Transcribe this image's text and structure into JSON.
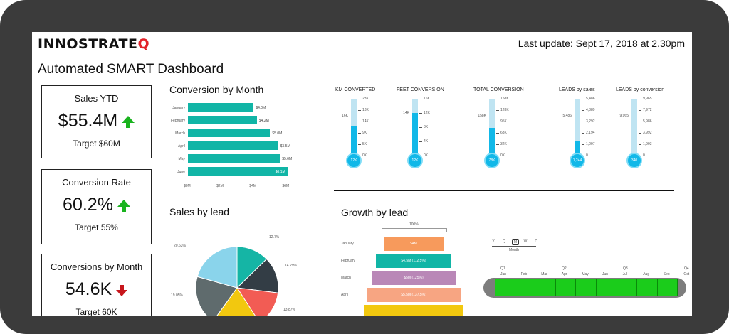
{
  "header": {
    "logo_text": "INNOSTRATE",
    "logo_accent": "Q",
    "last_update": "Last update: Sept 17, 2018 at 2.30pm",
    "title": "Automated SMART Dashboard"
  },
  "kpis": [
    {
      "label": "Sales YTD",
      "value": "$55.4M",
      "trend": "up",
      "target": "Target $60M"
    },
    {
      "label": "Conversion Rate",
      "value": "60.2%",
      "trend": "up",
      "target": "Target 55%"
    },
    {
      "label": "Conversions by Month",
      "value": "54.6K",
      "trend": "down",
      "target": "Target 60K"
    }
  ],
  "conversion_by_month": {
    "title": "Conversion by Month",
    "categories": [
      "January",
      "February",
      "March",
      "April",
      "May",
      "June"
    ],
    "value_labels": [
      "$4.0M",
      "$4.2M",
      "$5.0M",
      "$5.5M",
      "$5.6M",
      "$6.1M"
    ],
    "values": [
      4.0,
      4.2,
      5.0,
      5.5,
      5.6,
      6.1
    ],
    "xticks": [
      "$0M",
      "$2M",
      "$4M",
      "$6M"
    ],
    "xmax": 6.5
  },
  "thermometers": [
    {
      "title": "KM CONVERTED",
      "target_label": "16K",
      "fill_label": "12K",
      "fill": 0.52,
      "ticks": [
        "23K",
        "18K",
        "14K",
        "9K",
        "5K",
        "0K"
      ]
    },
    {
      "title": "FEET CONVERSION",
      "target_label": "14K",
      "fill_label": "12K",
      "fill": 0.75,
      "ticks": [
        "16K",
        "12K",
        "8K",
        "4K",
        "0K"
      ]
    },
    {
      "title": "TOTAL CONVERSION",
      "target_label": "158K",
      "fill_label": "78K",
      "fill": 0.49,
      "ticks": [
        "158K",
        "128K",
        "95K",
        "63K",
        "32K",
        "0K"
      ]
    },
    {
      "title": "LEADS by sales",
      "target_label": "5,486",
      "fill_label": "1,244",
      "fill": 0.25,
      "ticks": [
        "5,486",
        "4,389",
        "3,292",
        "2,194",
        "1,097",
        "0"
      ]
    },
    {
      "title": "LEADS by conversion",
      "target_label": "9,965",
      "fill_label": "340",
      "fill": 0.05,
      "ticks": [
        "9,965",
        "7,972",
        "5,986",
        "3,992",
        "1,993",
        "0"
      ]
    }
  ],
  "sales_by_lead": {
    "title": "Sales by lead",
    "slice_labels": [
      "12.7%",
      "14.29%",
      "13.87%",
      "19.05%",
      "20.63%"
    ],
    "slices": [
      {
        "value": 12.7,
        "color": "#15b5a5"
      },
      {
        "value": 14.29,
        "color": "#333d45"
      },
      {
        "value": 13.87,
        "color": "#f25c54"
      },
      {
        "value": 19.05,
        "color": "#f2c80f"
      },
      {
        "value": 19.46,
        "color": "#5f6b6d"
      },
      {
        "value": 20.63,
        "color": "#8ad4eb"
      }
    ]
  },
  "growth_by_lead": {
    "title": "Growth by lead",
    "scale_label": "100%",
    "rows": [
      {
        "label": "January",
        "value_label": "$4M",
        "width": 0.52,
        "color": "#f79a5c"
      },
      {
        "label": "February",
        "value_label": "$4.5M (112.5%)",
        "width": 0.66,
        "color": "#11b5a6"
      },
      {
        "label": "March",
        "value_label": "$5M (125%)",
        "width": 0.74,
        "color": "#b987b7"
      },
      {
        "label": "April",
        "value_label": "$5.5M (137.5%)",
        "width": 0.82,
        "color": "#f7a582"
      },
      {
        "label": "",
        "value_label": "",
        "width": 0.88,
        "color": "#f2c80f"
      }
    ]
  },
  "timeline": {
    "granularity_labels": [
      "Y",
      "Q",
      "M",
      "W",
      "D"
    ],
    "selected": "M",
    "granularity_caption": "Month",
    "quarters": [
      "Q1",
      "Q2",
      "Q3",
      "Q4"
    ],
    "months": [
      "Jan",
      "Feb",
      "Mar",
      "Apr",
      "May",
      "Jun",
      "Jul",
      "Aug",
      "Sep",
      "Oct"
    ],
    "selected_months": 9,
    "accent": "#1bcc1b"
  }
}
